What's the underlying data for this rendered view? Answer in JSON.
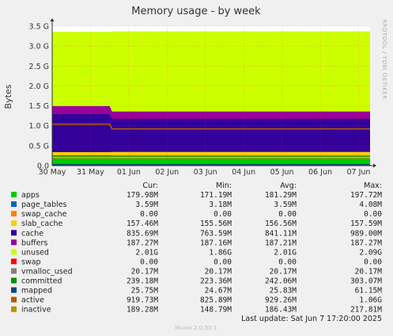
{
  "chart_data": {
    "type": "area",
    "title": "Memory usage - by week",
    "ylabel": "Bytes",
    "side_label": "RRDTOOL / TOBI OETIKER",
    "ylim": [
      0,
      3.5
    ],
    "y_ticks": [
      {
        "v": 0.0,
        "label": "0.0"
      },
      {
        "v": 0.5,
        "label": "0.5 G"
      },
      {
        "v": 1.0,
        "label": "1.0 G"
      },
      {
        "v": 1.5,
        "label": "1.5 G"
      },
      {
        "v": 2.0,
        "label": "2.0 G"
      },
      {
        "v": 2.5,
        "label": "2.5 G"
      },
      {
        "v": 3.0,
        "label": "3.0 G"
      },
      {
        "v": 3.5,
        "label": "3.5 G"
      }
    ],
    "x_ticks": [
      "30 May",
      "31 May",
      "01 Jun",
      "02 Jun",
      "03 Jun",
      "04 Jun",
      "05 Jun",
      "06 Jun",
      "07 Jun"
    ],
    "xlim": [
      0,
      8.3
    ],
    "step_at": 1.5,
    "stack": [
      {
        "name": "apps",
        "color": "#00cc00",
        "before": 0.178,
        "after": 0.182
      },
      {
        "name": "page_tables",
        "color": "#0066b3",
        "before": 0.0035,
        "after": 0.0035
      },
      {
        "name": "swap_cache",
        "color": "#ff8000",
        "before": 0.0,
        "after": 0.0
      },
      {
        "name": "slab_cache",
        "color": "#ffcc00",
        "before": 0.156,
        "after": 0.157
      },
      {
        "name": "cache",
        "color": "#330099",
        "before": 0.97,
        "after": 0.83
      },
      {
        "name": "buffers",
        "color": "#990099",
        "before": 0.187,
        "after": 0.187
      },
      {
        "name": "unused",
        "color": "#ccff00",
        "before": 1.86,
        "after": 2.01
      },
      {
        "name": "swap",
        "color": "#ff0000",
        "before": 0.0,
        "after": 0.0
      }
    ],
    "lines": [
      {
        "name": "vmalloc_used",
        "color": "#808080",
        "before": 0.0202,
        "after": 0.0202
      },
      {
        "name": "committed",
        "color": "#008f00",
        "before": 0.24,
        "after": 0.239
      },
      {
        "name": "mapped",
        "color": "#00487d",
        "before": 0.026,
        "after": 0.0257
      },
      {
        "name": "active",
        "color": "#b35a00",
        "before": 1.04,
        "after": 0.92
      },
      {
        "name": "inactive",
        "color": "#b38f00",
        "before": 0.19,
        "after": 0.189
      }
    ],
    "legend_headers": [
      "Cur:",
      "Min:",
      "Avg:",
      "Max:"
    ],
    "legend": [
      {
        "name": "apps",
        "color": "#00cc00",
        "cur": "179.98M",
        "min": "171.19M",
        "avg": "181.29M",
        "max": "197.72M"
      },
      {
        "name": "page_tables",
        "color": "#0066b3",
        "cur": "3.59M",
        "min": "3.18M",
        "avg": "3.59M",
        "max": "4.08M"
      },
      {
        "name": "swap_cache",
        "color": "#ff8000",
        "cur": "0.00",
        "min": "0.00",
        "avg": "0.00",
        "max": "0.00"
      },
      {
        "name": "slab_cache",
        "color": "#ffcc00",
        "cur": "157.46M",
        "min": "155.56M",
        "avg": "156.56M",
        "max": "157.59M"
      },
      {
        "name": "cache",
        "color": "#330099",
        "cur": "835.69M",
        "min": "763.59M",
        "avg": "841.11M",
        "max": "989.00M"
      },
      {
        "name": "buffers",
        "color": "#990099",
        "cur": "187.27M",
        "min": "187.16M",
        "avg": "187.21M",
        "max": "187.27M"
      },
      {
        "name": "unused",
        "color": "#ccff00",
        "cur": "2.01G",
        "min": "1.86G",
        "avg": "2.01G",
        "max": "2.09G"
      },
      {
        "name": "swap",
        "color": "#ff0000",
        "cur": "0.00",
        "min": "0.00",
        "avg": "0.00",
        "max": "0.00"
      },
      {
        "name": "vmalloc_used",
        "color": "#808080",
        "cur": "20.17M",
        "min": "20.17M",
        "avg": "20.17M",
        "max": "20.17M"
      },
      {
        "name": "committed",
        "color": "#008f00",
        "cur": "239.18M",
        "min": "223.36M",
        "avg": "242.06M",
        "max": "303.07M"
      },
      {
        "name": "mapped",
        "color": "#00487d",
        "cur": "25.75M",
        "min": "24.67M",
        "avg": "25.83M",
        "max": "61.15M"
      },
      {
        "name": "active",
        "color": "#b35a00",
        "cur": "919.73M",
        "min": "825.89M",
        "avg": "929.26M",
        "max": "1.06G"
      },
      {
        "name": "inactive",
        "color": "#b38f00",
        "cur": "189.28M",
        "min": "148.79M",
        "avg": "186.43M",
        "max": "217.81M"
      }
    ],
    "last_update": "Last update:  Sat Jun  7 17:20:00 2025",
    "footer": "Munin 2.0.33-1"
  }
}
